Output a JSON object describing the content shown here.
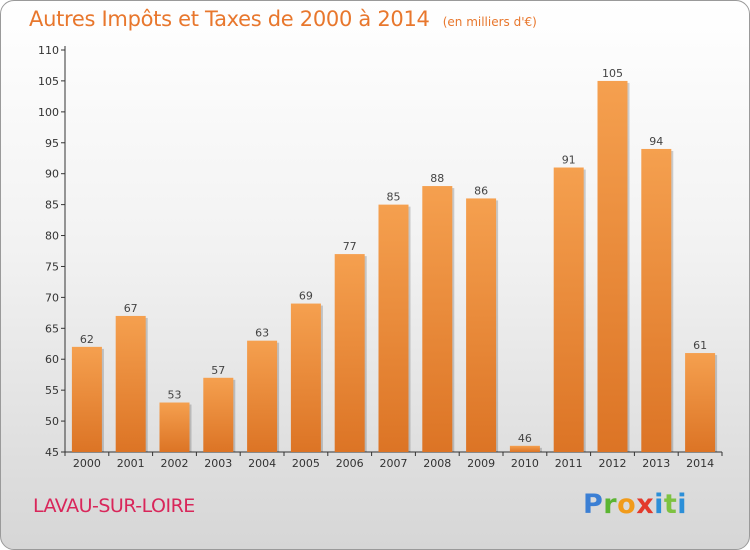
{
  "chart_data": {
    "type": "bar",
    "title": "Autres Impôts et Taxes de 2000 à 2014",
    "subtitle": "(en milliers d'€)",
    "categories": [
      "2000",
      "2001",
      "2002",
      "2003",
      "2004",
      "2005",
      "2006",
      "2007",
      "2008",
      "2009",
      "2010",
      "2011",
      "2012",
      "2013",
      "2014"
    ],
    "values": [
      62,
      67,
      53,
      57,
      63,
      69,
      77,
      85,
      88,
      86,
      46,
      91,
      105,
      94,
      61
    ],
    "ylim": [
      45,
      110
    ],
    "yticks": [
      45,
      50,
      55,
      60,
      65,
      70,
      75,
      80,
      85,
      90,
      95,
      100,
      105,
      110
    ],
    "grid": false,
    "bar_color": "#f0923e",
    "xlabel": "",
    "ylabel": ""
  },
  "commune": "LAVAU-SUR-LOIRE",
  "brand": {
    "p": "P",
    "r": "r",
    "o": "o",
    "x": "x",
    "i": "i",
    "t": "t",
    "i2": "i"
  },
  "colors": {
    "title": "#e8772d",
    "commune": "#d9265a"
  }
}
